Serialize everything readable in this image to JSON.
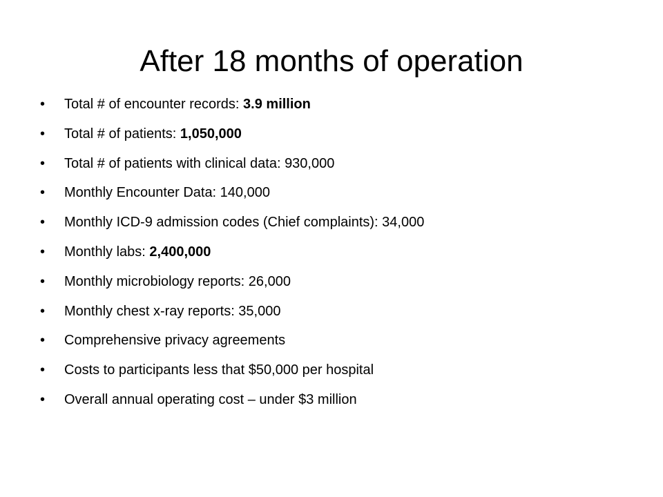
{
  "slide": {
    "title": "After 18 months of operation",
    "bullet_glyph": "•",
    "items": [
      {
        "text": "Total # of encounter records: ",
        "bold": "3.9 million"
      },
      {
        "text": "Total # of patients: ",
        "bold": "1,050,000"
      },
      {
        "text": "Total # of patients with clinical data: 930,000",
        "bold": ""
      },
      {
        "text": "Monthly Encounter Data: 140,000",
        "bold": ""
      },
      {
        "text": "Monthly ICD-9 admission codes (Chief complaints): 34,000",
        "bold": ""
      },
      {
        "text": "Monthly labs: ",
        "bold": "2,400,000"
      },
      {
        "text": "Monthly microbiology reports: 26,000",
        "bold": ""
      },
      {
        "text": "Monthly chest x-ray reports: 35,000",
        "bold": ""
      },
      {
        "text": "Comprehensive privacy agreements",
        "bold": ""
      },
      {
        "text": "Costs to participants less that $50,000 per hospital",
        "bold": ""
      },
      {
        "text": "Overall annual operating cost – under $3 million",
        "bold": ""
      }
    ]
  }
}
